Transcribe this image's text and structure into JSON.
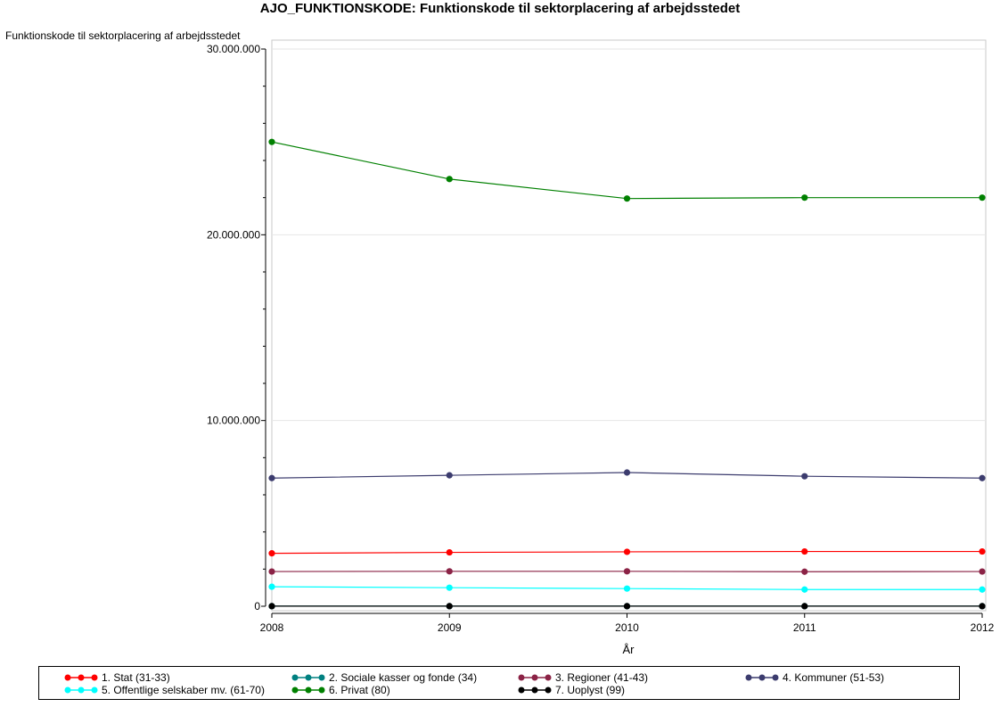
{
  "title": "AJO_FUNKTIONSKODE: Funktionskode til sektorplacering af arbejdsstedet",
  "chart_data": {
    "type": "line",
    "ylabel": "Funktionskode til sektorplacering af arbejdsstedet",
    "xlabel": "År",
    "x": [
      "2008",
      "2009",
      "2010",
      "2011",
      "2012"
    ],
    "ylim": [
      0,
      30000000
    ],
    "yticks": [
      0,
      10000000,
      20000000,
      30000000
    ],
    "ytick_labels": [
      "0",
      "10.000.000",
      "20.000.000",
      "30.000.000"
    ],
    "grid": "horizontal",
    "legend_position": "bottom",
    "series": [
      {
        "name": "1. Stat (31-33)",
        "color": "#ff0000",
        "values": [
          2850000,
          2900000,
          2930000,
          2950000,
          2950000
        ]
      },
      {
        "name": "2. Sociale kasser og fonde (34)",
        "color": "#008080",
        "values": [
          5000,
          5000,
          5000,
          5000,
          5000
        ]
      },
      {
        "name": "3. Regioner (41-43)",
        "color": "#8b2346",
        "values": [
          1870000,
          1880000,
          1880000,
          1860000,
          1870000
        ]
      },
      {
        "name": "4. Kommuner (51-53)",
        "color": "#3c3c6e",
        "values": [
          6900000,
          7050000,
          7200000,
          7000000,
          6900000
        ]
      },
      {
        "name": "5. Offentlige selskaber mv. (61-70)",
        "color": "#00ffff",
        "values": [
          1050000,
          1000000,
          950000,
          900000,
          900000
        ]
      },
      {
        "name": "6. Privat (80)",
        "color": "#008000",
        "values": [
          25000000,
          23000000,
          21950000,
          22000000,
          22000000
        ]
      },
      {
        "name": "7. Uoplyst (99)",
        "color": "#000000",
        "values": [
          5000,
          5000,
          5000,
          5000,
          5000
        ]
      }
    ]
  }
}
